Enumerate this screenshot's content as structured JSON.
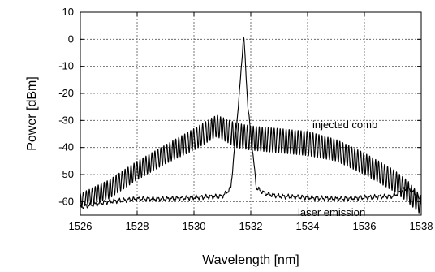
{
  "chart_data": {
    "type": "line",
    "title": "",
    "xlabel": "Wavelength [nm]",
    "ylabel": "Power [dBm]",
    "xlim": [
      1526,
      1538
    ],
    "ylim": [
      -65,
      10
    ],
    "xticks": [
      1526,
      1528,
      1530,
      1532,
      1534,
      1536,
      1538
    ],
    "yticks": [
      10,
      0,
      -10,
      -20,
      -30,
      -40,
      -50,
      -60
    ],
    "grid": true,
    "annotations": [
      {
        "text": "injected comb",
        "x": 1534.6,
        "y": -36
      },
      {
        "text": "laser emission",
        "x": 1534.6,
        "y": -65
      }
    ],
    "series": [
      {
        "name": "injected comb",
        "x": [
          1526,
          1527,
          1528,
          1529,
          1530,
          1530.8,
          1531.5,
          1532,
          1533,
          1534,
          1535,
          1536,
          1537,
          1537.5,
          1538
        ],
        "y_envelope_upper": [
          -57,
          -52,
          -45,
          -39,
          -33,
          -28,
          -31,
          -32,
          -33,
          -34,
          -37,
          -42,
          -48,
          -52,
          -58
        ],
        "y_envelope_lower": [
          -62,
          -59,
          -52,
          -46,
          -41,
          -36,
          -40,
          -41,
          -42,
          -43,
          -45,
          -50,
          -56,
          -60,
          -65
        ]
      },
      {
        "name": "laser emission",
        "x": [
          1526,
          1527,
          1528,
          1529,
          1530,
          1531,
          1531.3,
          1531.6,
          1531.75,
          1531.9,
          1532.2,
          1532.5,
          1533,
          1534,
          1535,
          1536,
          1537,
          1537.5,
          1537.8,
          1538
        ],
        "y": [
          -62,
          -60,
          -59,
          -59,
          -58.5,
          -58,
          -55,
          -20,
          2,
          -25,
          -55,
          -57,
          -58,
          -58.5,
          -59,
          -58.5,
          -58,
          -55,
          -57,
          -60
        ]
      }
    ]
  }
}
